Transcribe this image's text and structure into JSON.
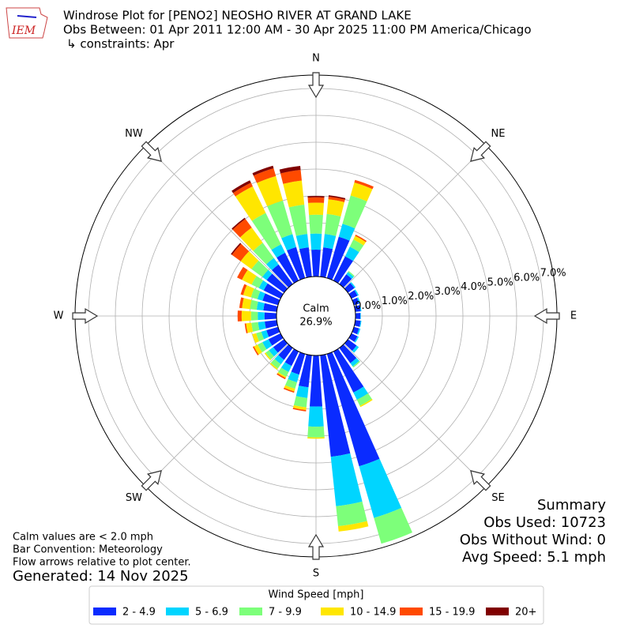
{
  "chart_data": {
    "type": "windrose",
    "logo_text": "IEM",
    "title": "Windrose Plot for [PENO2] NEOSHO RIVER  AT GRAND LAKE",
    "subtitle": "Obs Between: 01 Apr 2011 12:00 AM - 30 Apr 2025 11:00 PM America/Chicago",
    "constraints": "↳ constraints: Apr",
    "calm": {
      "label": "Calm",
      "value": 26.9,
      "value_label": "26.9%"
    },
    "compass_labels": [
      "N",
      "NE",
      "E",
      "SE",
      "S",
      "SW",
      "W",
      "NW"
    ],
    "directions": [
      0,
      10,
      20,
      30,
      40,
      50,
      60,
      70,
      80,
      90,
      100,
      110,
      120,
      130,
      140,
      150,
      160,
      170,
      180,
      190,
      200,
      210,
      220,
      230,
      240,
      250,
      260,
      270,
      280,
      290,
      300,
      310,
      320,
      330,
      340,
      350
    ],
    "rlim": [
      0,
      7.5
    ],
    "rticks": [
      {
        "value": 0,
        "label": "0.0%"
      },
      {
        "value": 1,
        "label": "1.0%"
      },
      {
        "value": 2,
        "label": "2.0%"
      },
      {
        "value": 3,
        "label": "3.0%"
      },
      {
        "value": 4,
        "label": "4.0%"
      },
      {
        "value": 5,
        "label": "5.0%"
      },
      {
        "value": 6,
        "label": "6.0%"
      },
      {
        "value": 7,
        "label": "7.0%"
      }
    ],
    "grid": true,
    "legend_title": "Wind Speed [mph]",
    "legend_position": "bottom",
    "series": [
      {
        "name": "2 - 4.9",
        "color": "#0a2bff",
        "values": [
          1.0,
          1.1,
          1.6,
          1.0,
          0.45,
          0.3,
          0.25,
          0.2,
          0.2,
          0.18,
          0.2,
          0.2,
          0.25,
          0.4,
          0.7,
          1.7,
          4.35,
          3.8,
          1.9,
          1.2,
          0.8,
          0.6,
          0.55,
          0.5,
          0.5,
          0.45,
          0.45,
          0.45,
          0.5,
          0.6,
          0.7,
          0.8,
          0.9,
          1.15,
          1.2,
          1.1
        ]
      },
      {
        "name": "5 - 6.9",
        "color": "#00d5ff",
        "values": [
          0.6,
          0.5,
          0.5,
          0.4,
          0.1,
          0.05,
          0.05,
          0.05,
          0.03,
          0.02,
          0.03,
          0.05,
          0.05,
          0.1,
          0.15,
          0.3,
          2.0,
          1.85,
          0.75,
          0.4,
          0.3,
          0.25,
          0.2,
          0.2,
          0.25,
          0.2,
          0.25,
          0.25,
          0.25,
          0.2,
          0.2,
          0.2,
          0.3,
          0.35,
          0.5,
          0.5
        ]
      },
      {
        "name": "7 - 9.9",
        "color": "#7dff7a",
        "values": [
          0.7,
          0.75,
          1.1,
          0.3,
          0.05,
          0,
          0,
          0,
          0,
          0,
          0,
          0,
          0,
          0,
          0.05,
          0.25,
          1.0,
          0.75,
          0.4,
          0.35,
          0.25,
          0.2,
          0.2,
          0.15,
          0.2,
          0.2,
          0.25,
          0.25,
          0.25,
          0.25,
          0.3,
          0.5,
          0.7,
          1.3,
          1.3,
          1.1
        ]
      },
      {
        "name": "10 - 14.9",
        "color": "#ffe600",
        "values": [
          0.45,
          0.55,
          0.5,
          0.15,
          0,
          0,
          0,
          0,
          0,
          0,
          0,
          0,
          0,
          0,
          0,
          0.05,
          0,
          0.2,
          0.05,
          0.1,
          0.1,
          0.05,
          0.05,
          0.05,
          0.15,
          0.15,
          0.2,
          0.35,
          0.3,
          0.3,
          0.4,
          0.5,
          0.7,
          1.1,
          0.95,
          0.9
        ]
      },
      {
        "name": "15 - 19.9",
        "color": "#ff4a00",
        "values": [
          0.2,
          0.1,
          0.1,
          0.05,
          0,
          0,
          0,
          0,
          0,
          0,
          0,
          0,
          0,
          0,
          0,
          0,
          0,
          0,
          0,
          0.05,
          0.05,
          0.05,
          0,
          0,
          0.05,
          0,
          0.05,
          0.15,
          0.1,
          0.1,
          0.2,
          0.4,
          0.4,
          0.15,
          0.3,
          0.4
        ]
      },
      {
        "name": "20+",
        "color": "#800000",
        "values": [
          0.05,
          0.05,
          0,
          0,
          0,
          0,
          0,
          0,
          0,
          0,
          0,
          0,
          0,
          0,
          0,
          0,
          0,
          0,
          0,
          0,
          0,
          0,
          0,
          0,
          0,
          0,
          0,
          0,
          0,
          0,
          0,
          0.05,
          0.05,
          0.1,
          0.1,
          0.15
        ]
      }
    ],
    "summary": [
      "Summary",
      "Obs Used: 10723",
      "Obs Without Wind: 0",
      "Avg Speed: 5.1 mph"
    ],
    "notes": [
      "Calm values are < 2.0 mph",
      "Bar Convention: Meteorology",
      "Flow arrows relative to plot center."
    ],
    "generated": "Generated: 14 Nov 2025"
  }
}
